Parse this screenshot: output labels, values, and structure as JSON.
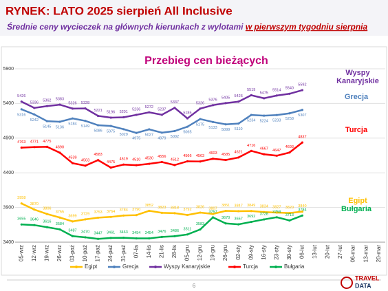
{
  "header": {
    "title": "RYNEK: LATO 2025 sierpień All Inclusive",
    "subtitle": [
      "Średnie ceny wycieczek na głównych kierunkach z wylotami ",
      "w pierwszym tygodniu sierpnia"
    ]
  },
  "chart_data": {
    "type": "line",
    "title": "Przebieg cen bieżących",
    "categories": [
      "05-wrz",
      "12-wrz",
      "19-wrz",
      "26-wrz",
      "03-paź",
      "10-paź",
      "17-paź",
      "24-paź",
      "31-paź",
      "07-lis",
      "14-lis",
      "21-lis",
      "28-lis",
      "05-gru",
      "12-gru",
      "19-gru",
      "26-gru",
      "02-sty",
      "09-sty",
      "16-sty",
      "23-sty",
      "30-sty",
      "06-lut",
      "13-lut",
      "20-lut",
      "27-lut",
      "06-mar",
      "13-mar",
      "20-mar"
    ],
    "ylim": [
      3400,
      5900
    ],
    "yticks": [
      3400,
      3900,
      4400,
      4900,
      5400,
      5900
    ],
    "grid": true,
    "legend": "bottom",
    "series": [
      {
        "name": "Egipt",
        "color": "#ffc000",
        "values": [
          3958,
          3870,
          3806,
          3755,
          3699,
          3729,
          3753,
          3764,
          3784,
          3790,
          3852,
          3823,
          3818,
          3792,
          3826,
          3807,
          3851,
          3847,
          3849,
          3834,
          3827,
          3820,
          3840,
          null,
          null,
          null,
          null,
          null,
          null
        ]
      },
      {
        "name": "Grecja",
        "color": "#4f81bd",
        "values": [
          5316,
          5242,
          5145,
          5136,
          5184,
          5149,
          5086,
          5075,
          5029,
          4975,
          5027,
          4979,
          5002,
          5065,
          5175,
          5133,
          5099,
          5110,
          5234,
          5224,
          5233,
          5258,
          5307,
          null,
          null,
          null,
          null,
          null,
          null
        ]
      },
      {
        "name": "Wyspy Kanaryjskie",
        "color": "#7030a0",
        "values": [
          5426,
          5336,
          5362,
          5383,
          5326,
          5328,
          5221,
          5196,
          5201,
          5236,
          5272,
          5237,
          5337,
          5185,
          5326,
          5376,
          5405,
          5426,
          5519,
          5475,
          5514,
          5540,
          5592,
          null,
          null,
          null,
          null,
          null,
          null
        ]
      },
      {
        "name": "Turcja",
        "color": "#ff0000",
        "values": [
          4763,
          4771,
          4775,
          4690,
          4539,
          4503,
          4583,
          4475,
          4519,
          4510,
          4530,
          4556,
          4512,
          4566,
          4563,
          4603,
          4585,
          4621,
          4716,
          4667,
          4647,
          4693,
          4837,
          null,
          null,
          null,
          null,
          null,
          null
        ]
      },
      {
        "name": "Bułgaria",
        "color": "#00b050",
        "values": [
          3655,
          3646,
          3616,
          3584,
          3487,
          3470,
          3447,
          3461,
          3463,
          3454,
          3454,
          3476,
          3486,
          3511,
          3583,
          3757,
          3670,
          3657,
          3692,
          3728,
          3759,
          3713,
          3784,
          null,
          null,
          null,
          null,
          null,
          null
        ]
      }
    ]
  },
  "footer": {
    "page": "6",
    "logo": [
      "TRAVEL",
      "DATA"
    ]
  }
}
